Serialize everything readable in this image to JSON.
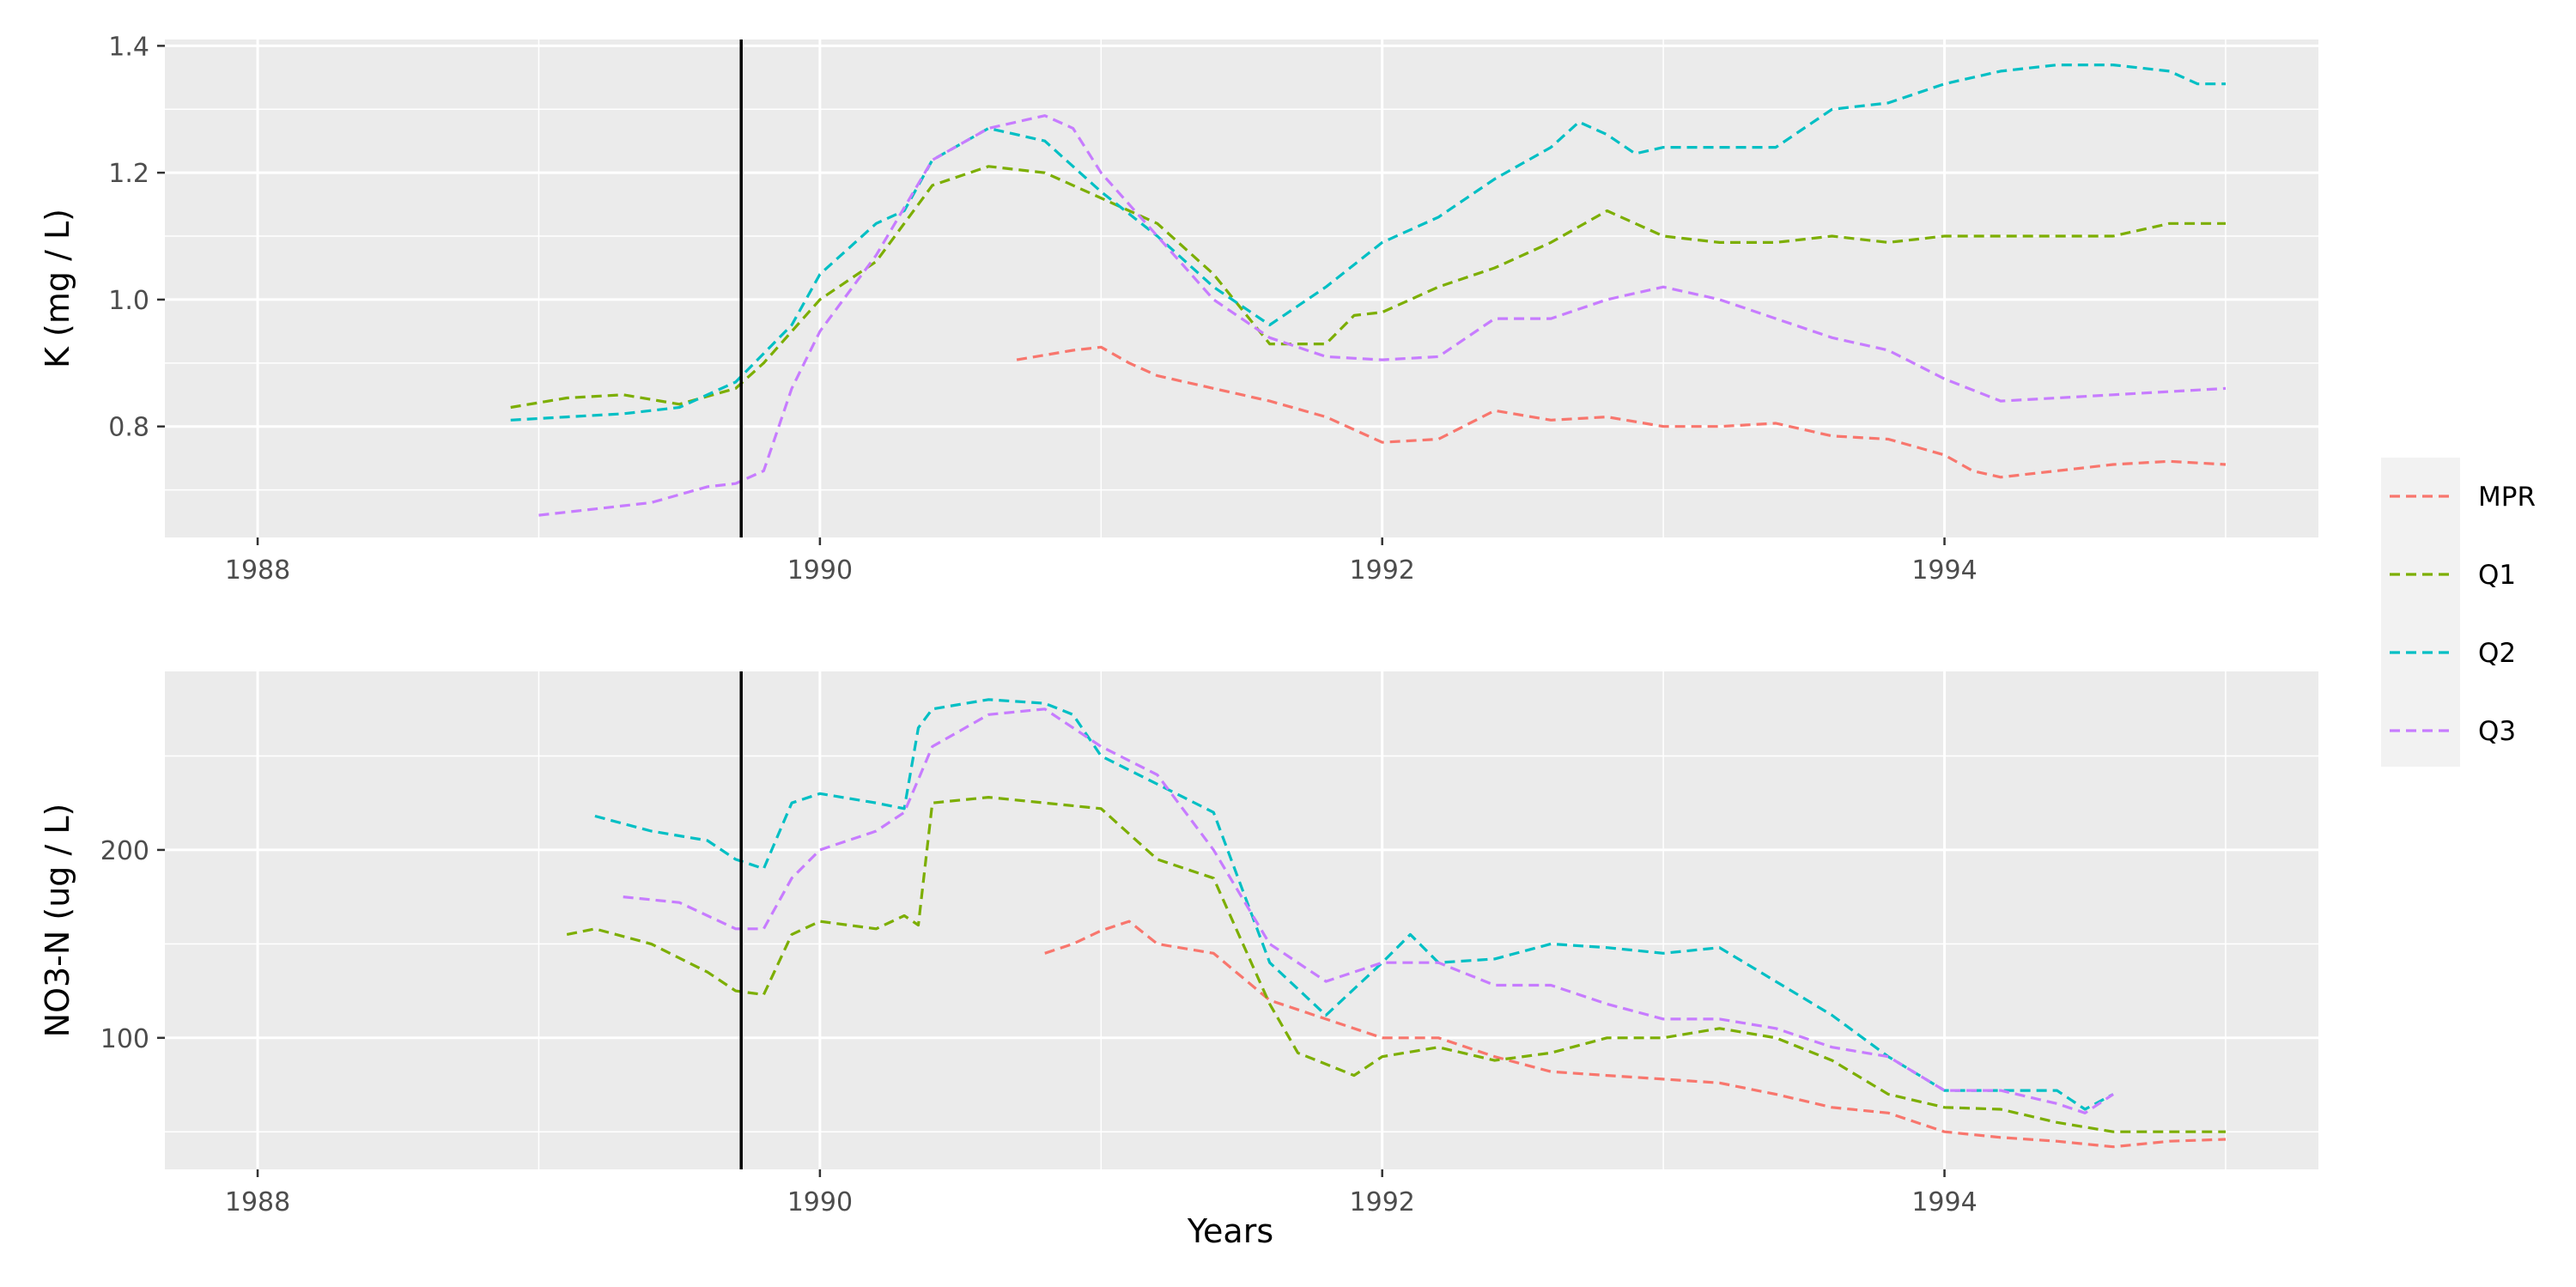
{
  "chart_data": {
    "type": "line",
    "xlabel": "Years",
    "x_ticks": [
      "1988",
      "1990",
      "1992",
      "1994"
    ],
    "xlim": [
      1987.67,
      1995.33
    ],
    "vline_x": 1989.72,
    "legend": {
      "placement": "right",
      "entries": [
        "MPR",
        "Q1",
        "Q2",
        "Q3"
      ]
    },
    "colors": {
      "MPR": "#F8766D",
      "Q1": "#7CAE00",
      "Q2": "#00BFC4",
      "Q3": "#C77CFF",
      "panel_bg": "#EBEBEB",
      "grid": "#FFFFFF",
      "vline": "#000000"
    },
    "panels": [
      {
        "ylabel": "K (mg / L)",
        "ylim": [
          0.625,
          1.41
        ],
        "y_ticks": [
          "0.8",
          "1.0",
          "1.2",
          "1.4"
        ],
        "y_tick_values": [
          0.8,
          1.0,
          1.2,
          1.4
        ],
        "series": [
          {
            "name": "MPR",
            "x": [
              1990.7,
              1990.9,
              1991.0,
              1991.1,
              1991.2,
              1991.4,
              1991.6,
              1991.8,
              1992.0,
              1992.2,
              1992.4,
              1992.6,
              1992.8,
              1993.0,
              1993.2,
              1993.4,
              1993.6,
              1993.8,
              1994.0,
              1994.1,
              1994.2,
              1994.4,
              1994.6,
              1994.8,
              1995.0
            ],
            "y": [
              0.905,
              0.92,
              0.925,
              0.9,
              0.88,
              0.86,
              0.84,
              0.815,
              0.775,
              0.78,
              0.825,
              0.81,
              0.815,
              0.8,
              0.8,
              0.805,
              0.785,
              0.78,
              0.755,
              0.73,
              0.72,
              0.73,
              0.74,
              0.745,
              0.74
            ]
          },
          {
            "name": "Q1",
            "x": [
              1988.9,
              1989.1,
              1989.3,
              1989.5,
              1989.7,
              1989.8,
              1990.0,
              1990.2,
              1990.4,
              1990.6,
              1990.8,
              1990.9,
              1991.0,
              1991.2,
              1991.4,
              1991.6,
              1991.8,
              1991.9,
              1992.0,
              1992.2,
              1992.4,
              1992.6,
              1992.8,
              1993.0,
              1993.2,
              1993.4,
              1993.6,
              1993.8,
              1994.0,
              1994.2,
              1994.4,
              1994.6,
              1994.8,
              1995.0
            ],
            "y": [
              0.83,
              0.845,
              0.85,
              0.835,
              0.86,
              0.9,
              1.0,
              1.06,
              1.18,
              1.21,
              1.2,
              1.18,
              1.16,
              1.12,
              1.04,
              0.93,
              0.93,
              0.975,
              0.98,
              1.02,
              1.05,
              1.09,
              1.14,
              1.1,
              1.09,
              1.09,
              1.1,
              1.09,
              1.1,
              1.1,
              1.1,
              1.1,
              1.12,
              1.12
            ]
          },
          {
            "name": "Q2",
            "x": [
              1988.9,
              1989.1,
              1989.3,
              1989.5,
              1989.7,
              1989.9,
              1990.0,
              1990.2,
              1990.3,
              1990.4,
              1990.6,
              1990.8,
              1991.0,
              1991.2,
              1991.4,
              1991.6,
              1991.8,
              1992.0,
              1992.2,
              1992.4,
              1992.6,
              1992.7,
              1992.8,
              1992.9,
              1993.0,
              1993.2,
              1993.4,
              1993.6,
              1993.8,
              1994.0,
              1994.2,
              1994.4,
              1994.6,
              1994.8,
              1994.9,
              1995.0
            ],
            "y": [
              0.81,
              0.815,
              0.82,
              0.83,
              0.87,
              0.96,
              1.04,
              1.12,
              1.14,
              1.22,
              1.27,
              1.25,
              1.17,
              1.1,
              1.02,
              0.96,
              1.02,
              1.09,
              1.13,
              1.19,
              1.24,
              1.28,
              1.26,
              1.23,
              1.24,
              1.24,
              1.24,
              1.3,
              1.31,
              1.34,
              1.36,
              1.37,
              1.37,
              1.36,
              1.34,
              1.34
            ]
          },
          {
            "name": "Q3",
            "x": [
              1989.0,
              1989.2,
              1989.4,
              1989.6,
              1989.7,
              1989.8,
              1989.9,
              1990.0,
              1990.2,
              1990.4,
              1990.6,
              1990.8,
              1990.9,
              1991.0,
              1991.2,
              1991.4,
              1991.6,
              1991.8,
              1992.0,
              1992.2,
              1992.4,
              1992.6,
              1992.8,
              1993.0,
              1993.2,
              1993.4,
              1993.6,
              1993.8,
              1994.0,
              1994.2,
              1994.4,
              1994.6,
              1994.8,
              1995.0
            ],
            "y": [
              0.66,
              0.67,
              0.68,
              0.705,
              0.71,
              0.73,
              0.86,
              0.95,
              1.07,
              1.22,
              1.27,
              1.29,
              1.27,
              1.2,
              1.1,
              1.0,
              0.94,
              0.91,
              0.905,
              0.91,
              0.97,
              0.97,
              1.0,
              1.02,
              1.0,
              0.97,
              0.94,
              0.92,
              0.875,
              0.84,
              0.845,
              0.85,
              0.855,
              0.86
            ]
          }
        ]
      },
      {
        "ylabel": "NO3-N (ug / L)",
        "ylim": [
          30,
          295
        ],
        "y_ticks": [
          "100",
          "200"
        ],
        "y_tick_values": [
          100,
          200
        ],
        "series": [
          {
            "name": "MPR",
            "x": [
              1990.8,
              1990.9,
              1991.0,
              1991.1,
              1991.2,
              1991.4,
              1991.6,
              1991.8,
              1992.0,
              1992.2,
              1992.4,
              1992.6,
              1992.8,
              1993.0,
              1993.2,
              1993.4,
              1993.6,
              1993.8,
              1994.0,
              1994.2,
              1994.4,
              1994.6,
              1994.8,
              1995.0
            ],
            "y": [
              145,
              150,
              157,
              162,
              150,
              145,
              120,
              110,
              100,
              100,
              90,
              82,
              80,
              78,
              76,
              70,
              63,
              60,
              50,
              47,
              45,
              42,
              45,
              46
            ]
          },
          {
            "name": "Q1",
            "x": [
              1989.1,
              1989.2,
              1989.4,
              1989.6,
              1989.7,
              1989.8,
              1989.9,
              1990.0,
              1990.2,
              1990.3,
              1990.35,
              1990.4,
              1990.6,
              1990.8,
              1991.0,
              1991.2,
              1991.4,
              1991.6,
              1991.7,
              1991.9,
              1992.0,
              1992.2,
              1992.4,
              1992.6,
              1992.8,
              1993.0,
              1993.2,
              1993.4,
              1993.6,
              1993.8,
              1994.0,
              1994.2,
              1994.4,
              1994.6,
              1994.8,
              1995.0
            ],
            "y": [
              155,
              158,
              150,
              135,
              125,
              123,
              155,
              162,
              158,
              165,
              160,
              225,
              228,
              225,
              222,
              195,
              185,
              118,
              92,
              80,
              90,
              95,
              88,
              92,
              100,
              100,
              105,
              100,
              88,
              70,
              63,
              62,
              55,
              50,
              50,
              50
            ]
          },
          {
            "name": "Q2",
            "x": [
              1989.2,
              1989.4,
              1989.6,
              1989.7,
              1989.8,
              1989.9,
              1990.0,
              1990.2,
              1990.3,
              1990.35,
              1990.4,
              1990.6,
              1990.8,
              1990.9,
              1991.0,
              1991.2,
              1991.4,
              1991.6,
              1991.8,
              1992.0,
              1992.1,
              1992.2,
              1992.4,
              1992.6,
              1992.8,
              1993.0,
              1993.2,
              1993.4,
              1993.6,
              1993.8,
              1994.0,
              1994.2,
              1994.4,
              1994.5,
              1994.6
            ],
            "y": [
              218,
              210,
              205,
              195,
              190,
              225,
              230,
              225,
              222,
              265,
              275,
              280,
              278,
              272,
              250,
              235,
              220,
              140,
              112,
              140,
              155,
              140,
              142,
              150,
              148,
              145,
              148,
              130,
              112,
              90,
              72,
              72,
              72,
              62,
              70
            ]
          },
          {
            "name": "Q3",
            "x": [
              1989.3,
              1989.5,
              1989.6,
              1989.7,
              1989.8,
              1989.9,
              1990.0,
              1990.2,
              1990.3,
              1990.4,
              1990.6,
              1990.8,
              1991.0,
              1991.2,
              1991.4,
              1991.6,
              1991.8,
              1992.0,
              1992.2,
              1992.4,
              1992.6,
              1992.8,
              1993.0,
              1993.2,
              1993.4,
              1993.6,
              1993.8,
              1994.0,
              1994.2,
              1994.4,
              1994.5,
              1994.6
            ],
            "y": [
              175,
              172,
              165,
              158,
              158,
              185,
              200,
              210,
              220,
              255,
              272,
              275,
              255,
              240,
              200,
              150,
              130,
              140,
              140,
              128,
              128,
              118,
              110,
              110,
              105,
              95,
              90,
              72,
              72,
              65,
              60,
              70
            ]
          }
        ]
      }
    ]
  }
}
